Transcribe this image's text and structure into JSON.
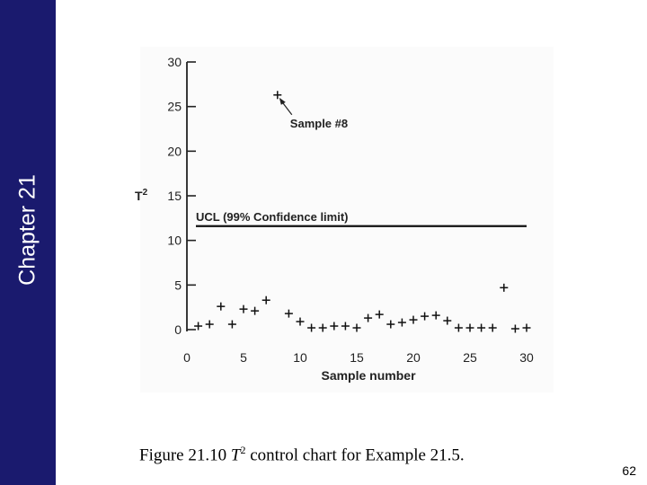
{
  "sidebar": {
    "title": "Chapter 21",
    "color": "#1a1a6e"
  },
  "chart_data": {
    "type": "scatter",
    "title": "",
    "xlabel": "Sample number",
    "ylabel": "T",
    "ylabel_sup": "2",
    "xlim": [
      0,
      30
    ],
    "ylim": [
      0,
      30
    ],
    "xticks": [
      0,
      5,
      10,
      15,
      20,
      25,
      30
    ],
    "yticks": [
      0,
      5,
      10,
      15,
      20,
      25,
      30
    ],
    "grid": false,
    "marker": "+",
    "x": [
      1,
      2,
      3,
      4,
      5,
      6,
      7,
      8,
      9,
      10,
      11,
      12,
      13,
      14,
      15,
      16,
      17,
      18,
      19,
      20,
      21,
      22,
      23,
      24,
      25,
      26,
      27,
      28,
      29,
      30
    ],
    "values": [
      0.4,
      0.6,
      2.6,
      0.6,
      2.3,
      2.1,
      3.3,
      26.3,
      1.8,
      0.9,
      0.2,
      0.2,
      0.4,
      0.4,
      0.2,
      1.3,
      1.7,
      0.6,
      0.8,
      1.1,
      1.5,
      1.6,
      1.0,
      0.2,
      0.2,
      0.2,
      0.2,
      4.7,
      0.1,
      0.2
    ],
    "ucl": {
      "value": 11.6,
      "label": "UCL (99% Confidence limit)"
    },
    "annotation": {
      "label": "Sample #8",
      "x": 8,
      "y": 26.3
    }
  },
  "caption": {
    "prefix": "Figure 21.10 ",
    "symbol": "T",
    "sup": "2",
    "suffix": " control chart for Example 21.5."
  },
  "page_number": "62"
}
